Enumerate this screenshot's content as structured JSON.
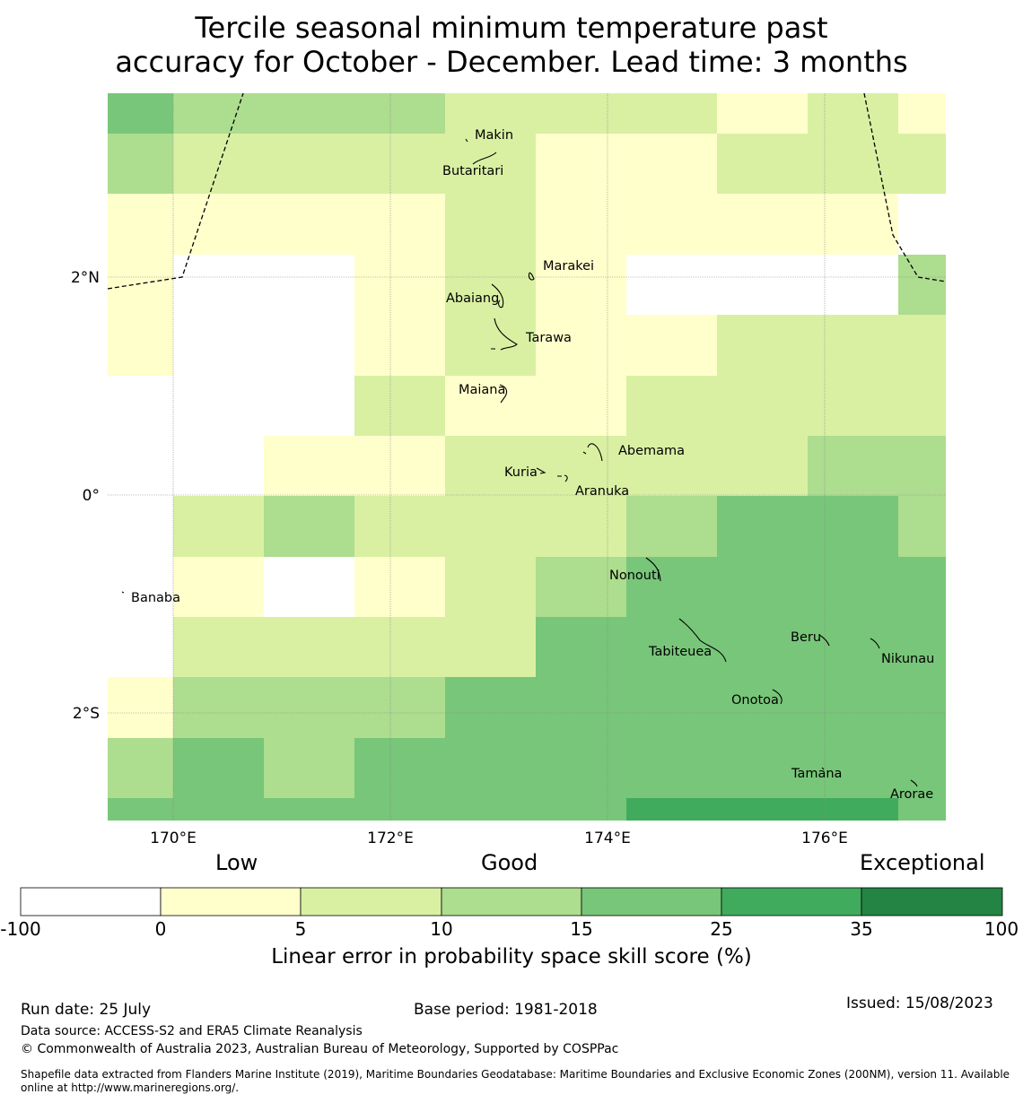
{
  "title_line1": "Tercile seasonal minimum temperature past",
  "title_line2": "accuracy for October - December. Lead time: 3 months",
  "axes": {
    "lat_labels": [
      {
        "value": 2,
        "text": "2°N"
      },
      {
        "value": 0,
        "text": "0°"
      },
      {
        "value": -2,
        "text": "2°S"
      }
    ],
    "lon_labels": [
      {
        "value": 170,
        "text": "170°E"
      },
      {
        "value": 172,
        "text": "172°E"
      },
      {
        "value": 174,
        "text": "174°E"
      },
      {
        "value": 176,
        "text": "176°E"
      }
    ]
  },
  "islands": [
    {
      "name": "Makin"
    },
    {
      "name": "Butaritari"
    },
    {
      "name": "Marakei"
    },
    {
      "name": "Abaiang"
    },
    {
      "name": "Tarawa"
    },
    {
      "name": "Maiana"
    },
    {
      "name": "Abemama"
    },
    {
      "name": "Kuria"
    },
    {
      "name": "Aranuka"
    },
    {
      "name": "Nonouti"
    },
    {
      "name": "Banaba"
    },
    {
      "name": "Beru"
    },
    {
      "name": "Tabiteuea"
    },
    {
      "name": "Nikunau"
    },
    {
      "name": "Onotoa"
    },
    {
      "name": "Tamana"
    },
    {
      "name": "Arorae"
    }
  ],
  "legend": {
    "categories": [
      "Low",
      "Good",
      "Exceptional"
    ],
    "bins": [
      {
        "from": "-100",
        "to": "0",
        "color": "#ffffff"
      },
      {
        "from": "0",
        "to": "5",
        "color": "#ffffcc"
      },
      {
        "from": "5",
        "to": "10",
        "color": "#d9f0a3"
      },
      {
        "from": "10",
        "to": "15",
        "color": "#addd8e"
      },
      {
        "from": "15",
        "to": "25",
        "color": "#78c679"
      },
      {
        "from": "25",
        "to": "35",
        "color": "#41ab5d"
      },
      {
        "from": "35",
        "to": "100",
        "color": "#238443"
      }
    ],
    "tick_labels": [
      "-100",
      "0",
      "5",
      "10",
      "15",
      "25",
      "35",
      "100"
    ],
    "label": "Linear error in probability space skill score (%)"
  },
  "grid_columns": [
    "169.4-170.0",
    "170.0-170.8",
    "170.8-171.7",
    "171.7-172.5",
    "172.5-173.3",
    "173.3-174.2",
    "174.2-175.0",
    "175.0-175.8",
    "175.8-176.7",
    "176.7-177.1"
  ],
  "grid_class_rows": [
    [
      4,
      3,
      3,
      3,
      2,
      2,
      2,
      1,
      2,
      1
    ],
    [
      3,
      2,
      2,
      2,
      2,
      1,
      1,
      2,
      2,
      2
    ],
    [
      1,
      1,
      1,
      1,
      2,
      1,
      1,
      1,
      1,
      0
    ],
    [
      1,
      0,
      0,
      1,
      2,
      1,
      0,
      0,
      0,
      3
    ],
    [
      1,
      0,
      0,
      1,
      2,
      1,
      1,
      2,
      2,
      2
    ],
    [
      0,
      0,
      0,
      2,
      1,
      1,
      2,
      2,
      2,
      2
    ],
    [
      0,
      0,
      1,
      1,
      2,
      2,
      2,
      2,
      3,
      3
    ],
    [
      0,
      2,
      3,
      2,
      2,
      2,
      3,
      4,
      4,
      3
    ],
    [
      0,
      1,
      0,
      1,
      2,
      3,
      4,
      4,
      4,
      4
    ],
    [
      0,
      2,
      2,
      2,
      2,
      4,
      4,
      4,
      4,
      4
    ],
    [
      1,
      3,
      3,
      3,
      4,
      4,
      4,
      4,
      4,
      4
    ],
    [
      3,
      4,
      3,
      4,
      4,
      4,
      4,
      4,
      4,
      4
    ],
    [
      4,
      4,
      4,
      4,
      4,
      4,
      5,
      5,
      5,
      4
    ]
  ],
  "footer": {
    "run_date": "Run date: 25 July",
    "base_period": "Base period: 1981-2018",
    "issued": "Issued: 15/08/2023",
    "data_source": "Data source: ACCESS-S2 and ERA5 Climate Reanalysis",
    "copyright": "© Commonwealth of Australia 2023, Australian Bureau of Meteorology, Supported by COSPPac",
    "shapefile_line1": "Shapefile data extracted from Flanders Marine Institute (2019), Maritime Boundaries Geodatabase: Maritime Boundaries and Exclusive Economic Zones (200NM), version 11. Available",
    "shapefile_line2": "online at http://www.marineregions.org/."
  }
}
